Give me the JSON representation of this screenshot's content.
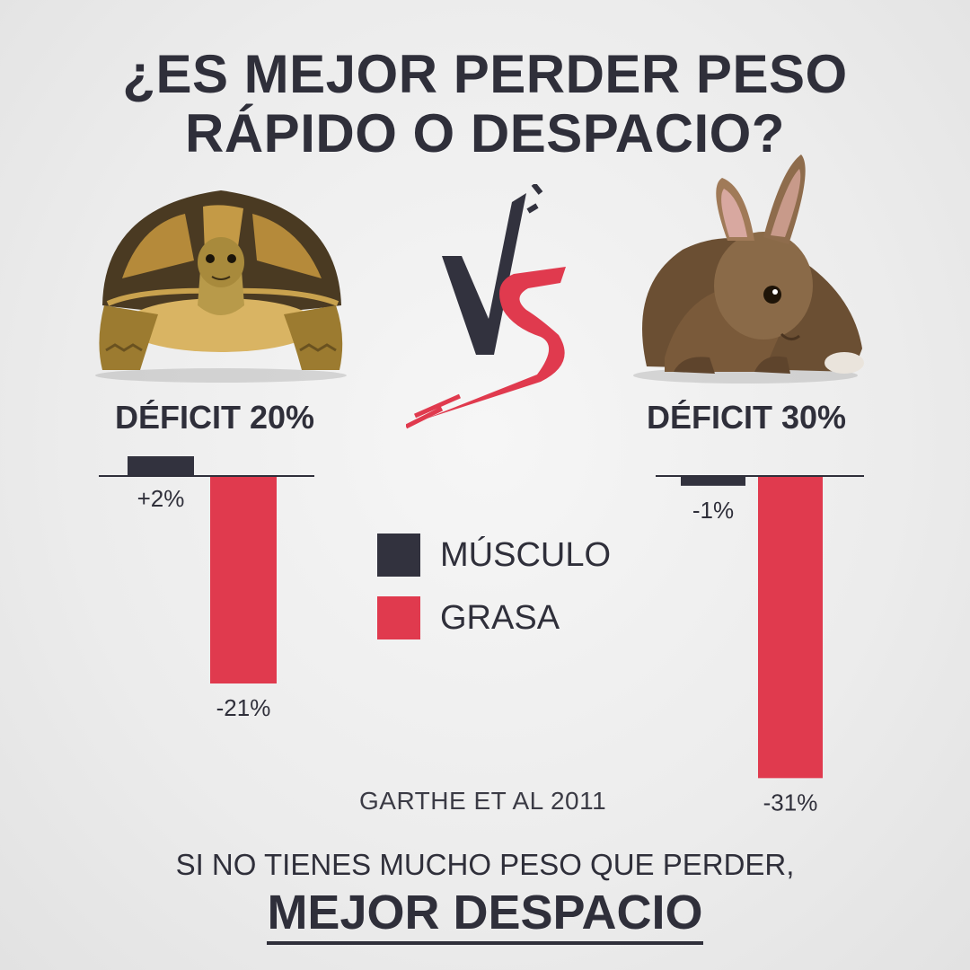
{
  "title": {
    "line1": "¿ES MEJOR PERDER PESO",
    "line2": "RÁPIDO O DESPACIO?"
  },
  "vs_label": "VS",
  "colors": {
    "muscle": "#32323e",
    "fat": "#e03a4e",
    "text": "#2f2f3a"
  },
  "legend": {
    "muscle_label": "MÚSCULO",
    "fat_label": "GRASA"
  },
  "source": "GARTHE ET AL 2011",
  "footer": {
    "line1": "SI NO TIENES MUCHO PESO QUE PERDER,",
    "line2": "MEJOR DESPACIO"
  },
  "chart_data": [
    {
      "type": "bar",
      "title": "DÉFICIT 20%",
      "categories": [
        "MÚSCULO",
        "GRASA"
      ],
      "values": [
        2,
        -21
      ],
      "value_labels": [
        "+2%",
        "-21%"
      ],
      "unit": "%"
    },
    {
      "type": "bar",
      "title": "DÉFICIT 30%",
      "categories": [
        "MÚSCULO",
        "GRASA"
      ],
      "values": [
        -1,
        -31
      ],
      "value_labels": [
        "-1%",
        "-31%"
      ],
      "unit": "%"
    }
  ]
}
